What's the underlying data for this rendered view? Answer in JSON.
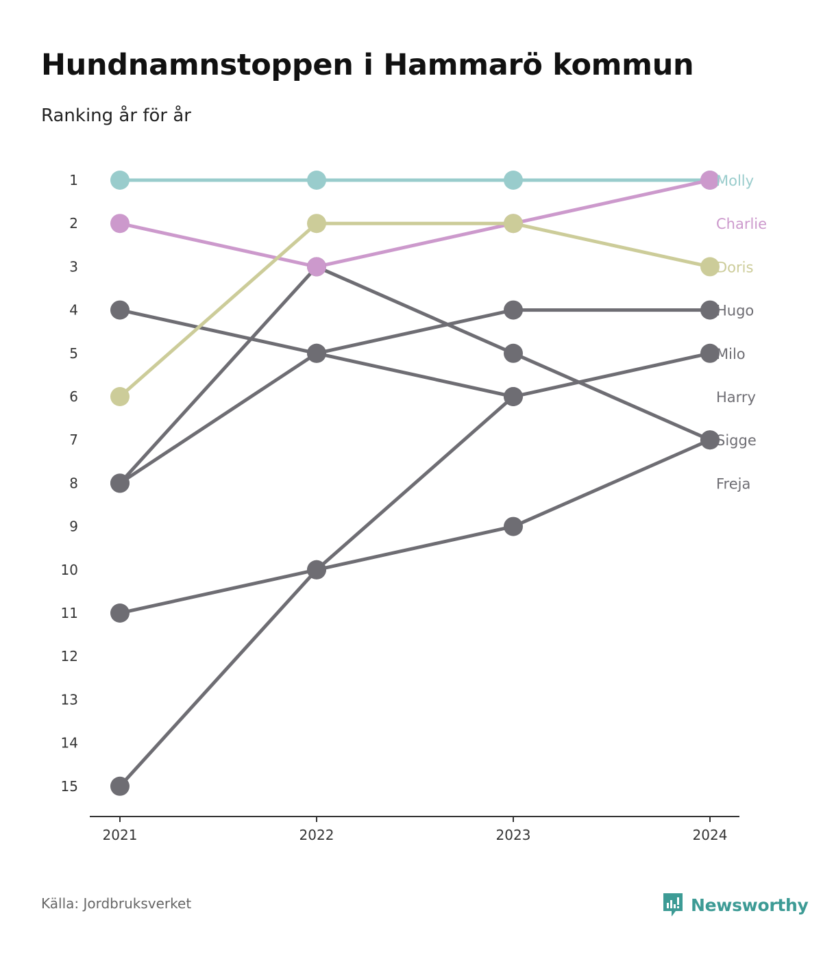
{
  "title": "Hundnamnstoppen i Hammarö kommun",
  "subtitle": "Ranking år för år",
  "source": "Källa: Jordbruksverket",
  "brand": {
    "name": "Newsworthy",
    "icon": "newsworthy-logo-icon",
    "color": "#3d9b95"
  },
  "chart_data": {
    "type": "line",
    "subtype": "bump",
    "x": [
      "2021",
      "2022",
      "2023",
      "2024"
    ],
    "y_ticks": [
      1,
      2,
      3,
      4,
      5,
      6,
      7,
      8,
      9,
      10,
      11,
      12,
      13,
      14,
      15
    ],
    "ylim": [
      1,
      15
    ],
    "y_inverted": true,
    "grid": false,
    "legend": "labels at right end of lines",
    "series": [
      {
        "name": "Molly",
        "values": [
          1,
          1,
          1,
          1
        ],
        "color": "#99cccc"
      },
      {
        "name": "Charlie",
        "values": [
          2,
          3,
          2,
          1
        ],
        "color": "#cc99cc"
      },
      {
        "name": "Doris",
        "values": [
          6,
          2,
          2,
          3
        ],
        "color": "#cccc99"
      },
      {
        "name": "Hugo",
        "values": [
          8,
          5,
          4,
          4
        ],
        "color": "#6e6d73"
      },
      {
        "name": "Milo",
        "values": [
          15,
          10,
          6,
          5
        ],
        "color": "#6e6d73"
      },
      {
        "name": "Harry",
        "values": [
          4,
          5,
          6,
          null
        ],
        "color": "#6e6d73"
      },
      {
        "name": "Sigge",
        "values": [
          11,
          10,
          9,
          7
        ],
        "color": "#6e6d73"
      },
      {
        "name": "Freja",
        "values": [
          8,
          3,
          5,
          7
        ],
        "color": "#6e6d73"
      }
    ],
    "end_labels": [
      {
        "name": "Molly",
        "rank": 1
      },
      {
        "name": "Charlie",
        "rank": 2
      },
      {
        "name": "Doris",
        "rank": 3
      },
      {
        "name": "Hugo",
        "rank": 4
      },
      {
        "name": "Milo",
        "rank": 5
      },
      {
        "name": "Harry",
        "rank": 6
      },
      {
        "name": "Sigge",
        "rank": 7
      },
      {
        "name": "Freja",
        "rank": 8
      }
    ]
  }
}
